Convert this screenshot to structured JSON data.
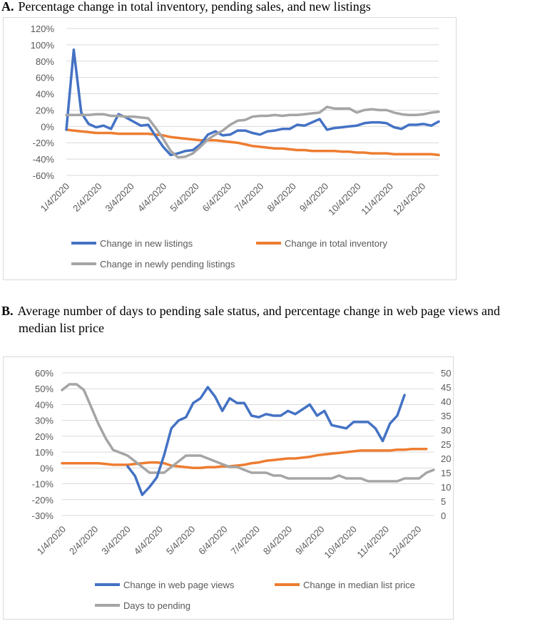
{
  "panel_a": {
    "letter": "A.",
    "title": "Percentage change in total inventory, pending sales, and new listings"
  },
  "panel_b": {
    "letter": "B.",
    "title": "Average number of days to pending sale status, and percentage change in web page views and median list price"
  },
  "colors": {
    "blue": "#4472c4",
    "orange": "#ed7d31",
    "gray": "#a5a5a5",
    "grid": "#d9d9d9"
  },
  "chart_data": [
    {
      "type": "line",
      "title": "Percentage change in total inventory, pending sales, and new listings",
      "y_unit": "%",
      "ylim": [
        -60,
        120
      ],
      "y_ticks": [
        "120%",
        "100%",
        "80%",
        "60%",
        "40%",
        "20%",
        "0%",
        "-20%",
        "-40%",
        "-60%"
      ],
      "x_ticks": [
        "1/4/2020",
        "2/4/2020",
        "3/4/2020",
        "4/4/2020",
        "5/4/2020",
        "6/4/2020",
        "7/4/2020",
        "8/4/2020",
        "9/4/2020",
        "10/4/2020",
        "11/4/2020",
        "12/4/2020"
      ],
      "grid": true,
      "legend": "bottom",
      "series": [
        {
          "name": "Change in new listings",
          "color": "#4472c4",
          "values": [
            -4,
            94,
            17,
            3,
            -1,
            1,
            -3,
            15,
            11,
            6,
            1,
            2,
            -12,
            -25,
            -35,
            -33,
            -30,
            -29,
            -22,
            -10,
            -6,
            -11,
            -10,
            -5,
            -5,
            -8,
            -10,
            -6,
            -5,
            -3,
            -3,
            2,
            1,
            5,
            9,
            -4,
            -2,
            -1,
            0,
            1,
            4,
            5,
            5,
            4,
            -1,
            -3,
            2,
            2,
            3,
            1,
            6
          ]
        },
        {
          "name": "Change in total inventory",
          "color": "#ed7d31",
          "values": [
            -4,
            -5,
            -6,
            -7,
            -8,
            -8,
            -8,
            -9,
            -9,
            -9,
            -9,
            -9,
            -10,
            -11,
            -13,
            -14,
            -15,
            -16,
            -17,
            -17,
            -17,
            -18,
            -19,
            -20,
            -22,
            -24,
            -25,
            -26,
            -27,
            -27,
            -28,
            -29,
            -29,
            -30,
            -30,
            -30,
            -30,
            -31,
            -31,
            -32,
            -32,
            -33,
            -33,
            -33,
            -34,
            -34,
            -34,
            -34,
            -34,
            -34,
            -35
          ]
        },
        {
          "name": "Change in newly pending listings",
          "color": "#a5a5a5",
          "values": [
            14,
            14,
            14,
            14,
            15,
            15,
            13,
            13,
            12,
            12,
            11,
            10,
            -2,
            -15,
            -30,
            -38,
            -37,
            -33,
            -25,
            -16,
            -10,
            -5,
            2,
            7,
            8,
            12,
            13,
            13,
            14,
            13,
            14,
            14,
            15,
            16,
            17,
            24,
            22,
            22,
            22,
            17,
            20,
            21,
            20,
            20,
            17,
            15,
            14,
            14,
            15,
            17,
            18
          ]
        }
      ]
    },
    {
      "type": "line",
      "title": "Average number of days to pending sale status, and percentage change in web page views and median list price",
      "ylim": [
        -30,
        60
      ],
      "y_ticks": [
        "60%",
        "50%",
        "40%",
        "30%",
        "20%",
        "10%",
        "0%",
        "-10%",
        "-20%",
        "-30%"
      ],
      "y2lim": [
        0,
        50
      ],
      "y2_ticks": [
        "50",
        "45",
        "40",
        "35",
        "30",
        "25",
        "20",
        "15",
        "10",
        "5",
        "0"
      ],
      "x_ticks": [
        "1/4/2020",
        "2/4/2020",
        "3/4/2020",
        "4/4/2020",
        "5/4/2020",
        "6/4/2020",
        "7/4/2020",
        "8/4/2020",
        "9/4/2020",
        "10/4/2020",
        "11/4/2020",
        "12/4/2020"
      ],
      "grid": true,
      "legend": "bottom",
      "series": [
        {
          "name": "Change in web page views",
          "color": "#4472c4",
          "axis": "left",
          "start_index": 9,
          "values": [
            1,
            -5,
            -17,
            -12,
            -6,
            8,
            25,
            30,
            32,
            41,
            44,
            51,
            45,
            36,
            44,
            41,
            41,
            33,
            32,
            34,
            33,
            33,
            36,
            34,
            37,
            40,
            33,
            36,
            27,
            26,
            25,
            29,
            29,
            29,
            25,
            17,
            28,
            33,
            46
          ]
        },
        {
          "name": "Change in median list price",
          "color": "#ed7d31",
          "axis": "left",
          "start_index": 0,
          "values": [
            3,
            3,
            3,
            3,
            3,
            3,
            2.5,
            2,
            2,
            2,
            2.5,
            3,
            3.5,
            3.5,
            3,
            1.5,
            1,
            0.5,
            0,
            0,
            0.5,
            0.5,
            1,
            1,
            1.5,
            2,
            3,
            3.5,
            4.5,
            5,
            5.5,
            6,
            6,
            6.5,
            7,
            8,
            8.5,
            9,
            9.5,
            10,
            10.5,
            11,
            11,
            11,
            11,
            11,
            11.5,
            11.5,
            12,
            12,
            12
          ]
        },
        {
          "name": "Days to pending",
          "color": "#a5a5a5",
          "axis": "right",
          "start_index": 0,
          "values": [
            44,
            46,
            46,
            44,
            38,
            32,
            27,
            23,
            22,
            21,
            19,
            17,
            15,
            15,
            15,
            17,
            19,
            21,
            21,
            21,
            20,
            19,
            18,
            17,
            17,
            16,
            15,
            15,
            15,
            14,
            14,
            13,
            13,
            13,
            13,
            13,
            13,
            13,
            14,
            13,
            13,
            13,
            12,
            12,
            12,
            12,
            12,
            13,
            13,
            13,
            15,
            16
          ]
        }
      ]
    }
  ]
}
